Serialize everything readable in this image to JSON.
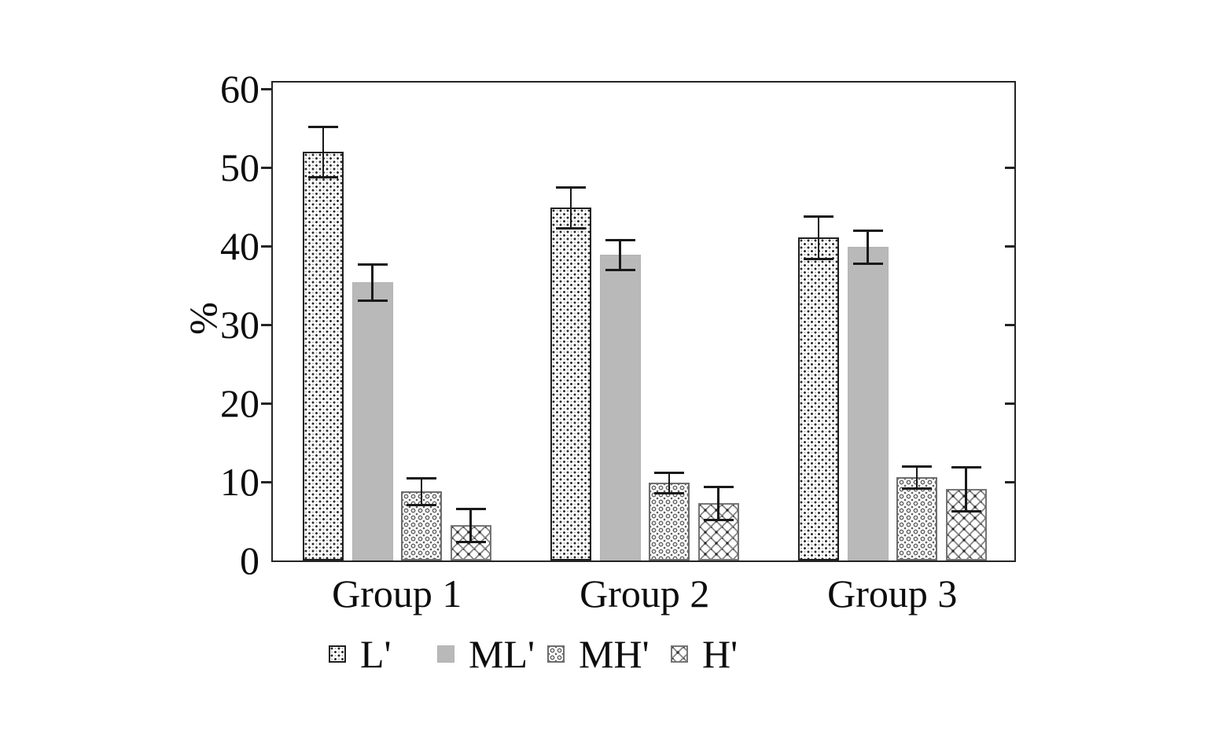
{
  "chart_data": {
    "type": "bar",
    "title": "",
    "xlabel": "",
    "ylabel": "%",
    "categories": [
      "Group 1",
      "Group 2",
      "Group 3"
    ],
    "series": [
      {
        "name": "L'",
        "pattern": "fine-dots",
        "values": [
          52.0,
          44.9,
          41.1
        ],
        "errors": [
          3.1,
          2.5,
          2.6
        ]
      },
      {
        "name": "ML'",
        "pattern": "solid-gray",
        "fill": "#b9b9b9",
        "values": [
          35.4,
          38.9,
          39.9
        ],
        "errors": [
          2.2,
          1.8,
          2.0
        ]
      },
      {
        "name": "MH'",
        "pattern": "circle-ornament",
        "values": [
          8.8,
          9.9,
          10.6
        ],
        "errors": [
          1.6,
          1.2,
          1.3
        ]
      },
      {
        "name": "H'",
        "pattern": "diamond-crosshatch",
        "values": [
          4.5,
          7.3,
          9.1
        ],
        "errors": [
          2.0,
          2.0,
          2.7
        ]
      }
    ],
    "y_ticks": [
      0,
      10,
      20,
      30,
      40,
      50,
      60
    ],
    "ylim": [
      0,
      60.8
    ],
    "ytick_step": 10,
    "grid": false,
    "error_bars": true,
    "legend_position": "bottom",
    "bar_edge_color": "#1f1f1f",
    "solid_bar_color": "#b9b9b9",
    "error_bar_color": "#191919",
    "background_color": "#ffffff"
  }
}
